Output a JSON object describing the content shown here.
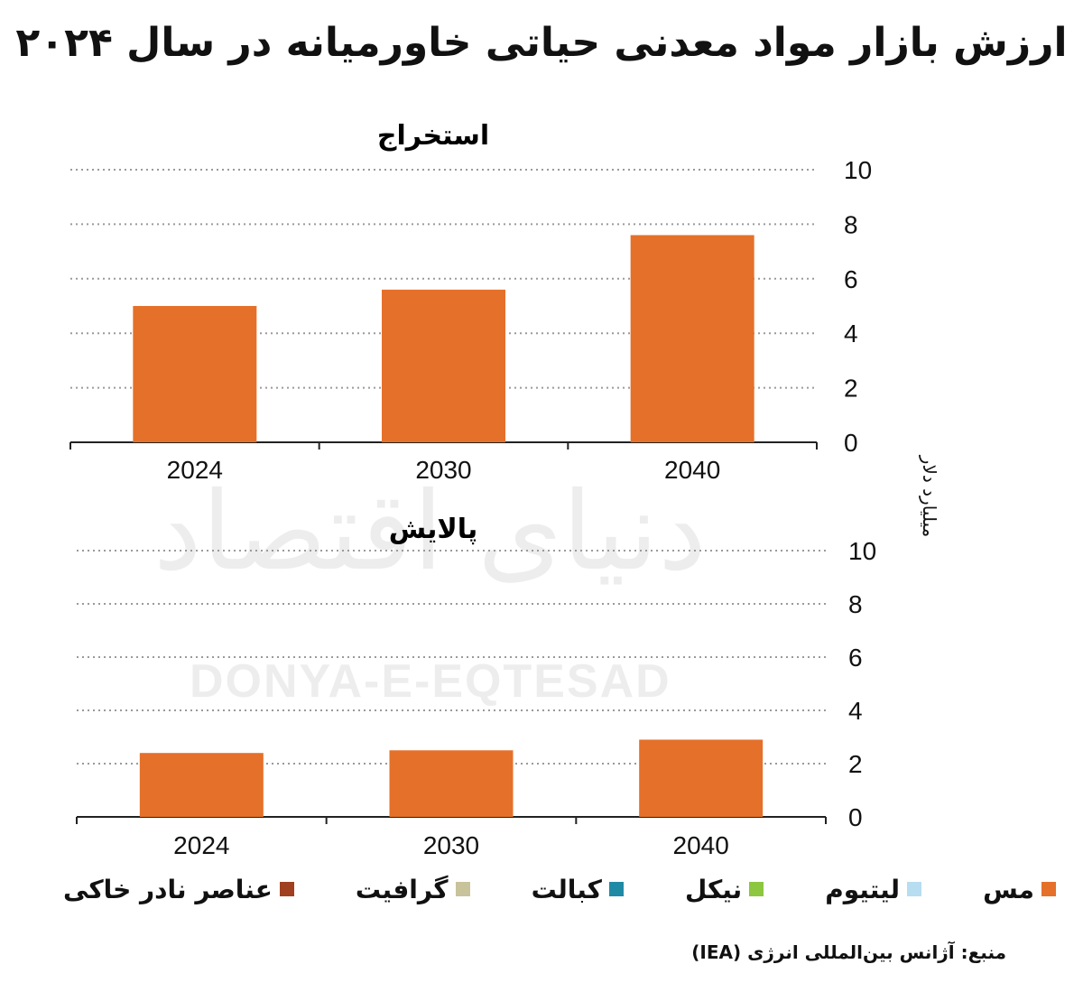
{
  "title": "ارزش بازار مواد معدنی حیاتی خاورمیانه در سال ۲۰۲۴",
  "unit_label": "میلیارد دلار",
  "watermark": {
    "fa": "دنیای اقتصاد",
    "en": "DONYA-E-EQTESAD"
  },
  "legend": [
    {
      "label": "مس",
      "color": "#e5702a"
    },
    {
      "label": "لیتیوم",
      "color": "#b7ddf0"
    },
    {
      "label": "نیکل",
      "color": "#8dc63f"
    },
    {
      "label": "کبالت",
      "color": "#1f8aa6"
    },
    {
      "label": "گرافیت",
      "color": "#c8c39a"
    },
    {
      "label": "عناصر نادر خاکی",
      "color": "#a0401e"
    }
  ],
  "source": "منبع: آژانس بین‌المللی انرژی (IEA)",
  "chart_data": [
    {
      "type": "bar",
      "title": "استخراج",
      "categories": [
        "2024",
        "2030",
        "2040"
      ],
      "series": [
        {
          "name": "مس",
          "values": [
            5.0,
            5.6,
            7.6
          ],
          "color": "#e5702a"
        }
      ],
      "ylim": [
        0,
        10
      ],
      "yticks": [
        0,
        2,
        4,
        6,
        8,
        10
      ],
      "grid": true
    },
    {
      "type": "bar",
      "title": "پالایش",
      "categories": [
        "2024",
        "2030",
        "2040"
      ],
      "series": [
        {
          "name": "مس",
          "values": [
            2.4,
            2.5,
            2.9
          ],
          "color": "#e5702a"
        }
      ],
      "ylim": [
        0,
        10
      ],
      "yticks": [
        0,
        2,
        4,
        6,
        8,
        10
      ],
      "grid": true
    }
  ]
}
